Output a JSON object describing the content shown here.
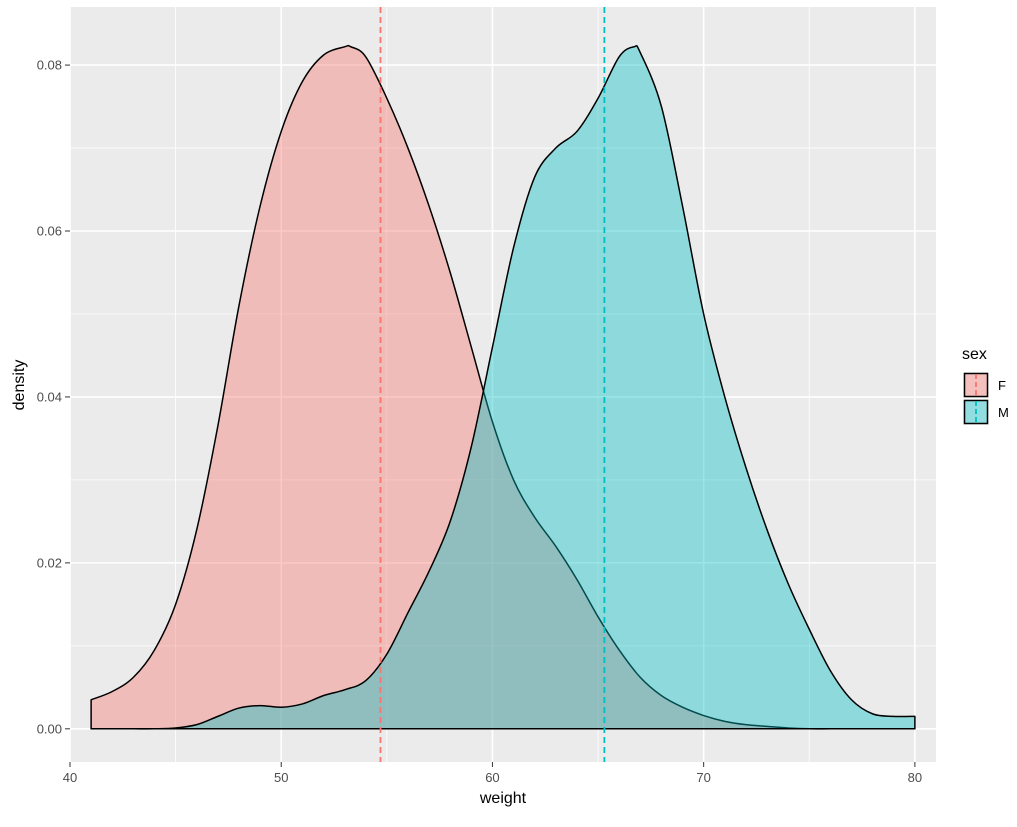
{
  "chart_data": {
    "type": "area",
    "subtype": "density",
    "xlabel": "weight",
    "ylabel": "density",
    "xlim": [
      40,
      81
    ],
    "ylim": [
      -0.004,
      0.087
    ],
    "x_ticks": [
      40,
      50,
      60,
      70,
      80
    ],
    "y_ticks": [
      0.0,
      0.02,
      0.04,
      0.06,
      0.08
    ],
    "y_tick_labels": [
      "0.00",
      "0.02",
      "0.04",
      "0.06",
      "0.08"
    ],
    "grid": true,
    "legend": {
      "title": "sex",
      "position": "right"
    },
    "colors": {
      "F": "#F8766D",
      "M": "#00BFC4",
      "panel": "#EBEBEB",
      "grid": "#FFFFFF"
    },
    "fill_alpha": 0.4,
    "series": [
      {
        "name": "F",
        "mean": 54.7,
        "x": [
          41,
          42,
          43,
          44,
          45,
          46,
          47,
          48,
          49,
          50,
          51,
          52,
          53,
          53.3,
          54,
          55,
          56,
          57,
          58,
          59,
          60,
          61,
          62,
          63,
          64,
          65,
          66,
          67,
          68,
          69,
          70,
          71,
          72,
          73,
          74,
          75,
          76,
          77,
          78,
          79,
          80
        ],
        "y": [
          0.0035,
          0.0045,
          0.0062,
          0.0095,
          0.015,
          0.024,
          0.0365,
          0.051,
          0.063,
          0.072,
          0.078,
          0.0812,
          0.0822,
          0.0822,
          0.081,
          0.076,
          0.07,
          0.063,
          0.055,
          0.046,
          0.037,
          0.03,
          0.0255,
          0.022,
          0.018,
          0.0135,
          0.0095,
          0.0062,
          0.004,
          0.0026,
          0.0016,
          0.0009,
          0.0005,
          0.0003,
          0.0001,
          0.0,
          0.0,
          0.0,
          0.0,
          0.0,
          0.0
        ]
      },
      {
        "name": "M",
        "mean": 65.3,
        "x": [
          41,
          42,
          43,
          44,
          45,
          46,
          47,
          48,
          49,
          50,
          51,
          52,
          53,
          54,
          55,
          56,
          57,
          58,
          59,
          60,
          61,
          62,
          63,
          64,
          65,
          66,
          66.7,
          67,
          68,
          69,
          70,
          71,
          72,
          73,
          74,
          75,
          76,
          77,
          78,
          79,
          80
        ],
        "y": [
          0.0,
          0.0,
          0.0,
          0.0,
          0.0001,
          0.0005,
          0.0015,
          0.0025,
          0.0028,
          0.0026,
          0.003,
          0.004,
          0.0047,
          0.0058,
          0.009,
          0.014,
          0.019,
          0.025,
          0.034,
          0.046,
          0.058,
          0.0665,
          0.07,
          0.072,
          0.076,
          0.081,
          0.0822,
          0.0815,
          0.075,
          0.063,
          0.05,
          0.04,
          0.0315,
          0.024,
          0.0175,
          0.012,
          0.007,
          0.0035,
          0.0018,
          0.0015,
          0.0015
        ]
      }
    ]
  }
}
